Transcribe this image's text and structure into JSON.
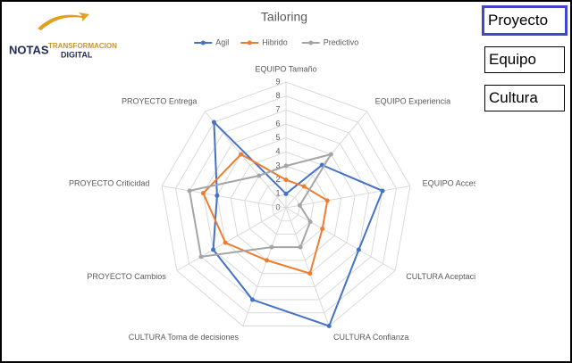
{
  "logo": {
    "top": "NOTAS",
    "middle": "TRANSFORMACION",
    "bottom": "DIGITAL"
  },
  "buttons": [
    "Proyecto",
    "Equipo",
    "Cultura"
  ],
  "chart_data": {
    "type": "radar",
    "title": "Tailoring",
    "categories": [
      "EQUIPO Tamaño",
      "EQUIPO Experiencia",
      "EQUIPO Acceso",
      "CULTURA Aceptación",
      "CULTURA Confianza",
      "CULTURA Toma de decisiones",
      "PROYECTO Cambios",
      "PROYECTO Criticidad",
      "PROYECTO Entrega"
    ],
    "series": [
      {
        "name": "Agil",
        "color": "#4472c4",
        "values": [
          1,
          4,
          7,
          6,
          9,
          7,
          6,
          5,
          8
        ]
      },
      {
        "name": "Hibrido",
        "color": "#ed7d31",
        "values": [
          2,
          2,
          3,
          3,
          5,
          4,
          5,
          6,
          5
        ]
      },
      {
        "name": "Predictivo",
        "color": "#a5a5a5",
        "values": [
          3,
          5,
          1,
          2,
          3,
          3,
          7,
          7,
          3
        ]
      }
    ],
    "rlim": [
      0,
      9
    ],
    "rticks": [
      0,
      1,
      2,
      3,
      4,
      5,
      6,
      7,
      8,
      9
    ],
    "grid": true,
    "legend": "top"
  }
}
